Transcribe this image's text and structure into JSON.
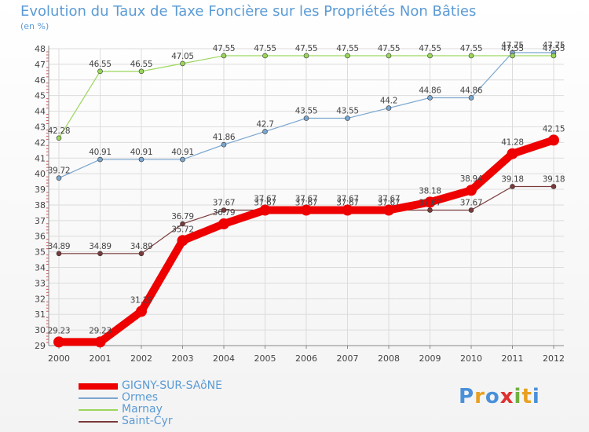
{
  "title": "Evolution du Taux de Taxe Foncière sur les Propriétés Non Bâties",
  "subtitle": "(en %)",
  "brand": [
    "P",
    "r",
    "o",
    "x",
    "i",
    "t",
    "i"
  ],
  "brand_colors": [
    "#4a90d9",
    "#e8a020",
    "#4a90d9",
    "#e03030",
    "#70b040",
    "#e8a020",
    "#4a90d9"
  ],
  "chart_data": {
    "type": "line",
    "title": "Evolution du Taux de Taxe Foncière sur les Propriétés Non Bâties",
    "ylabel": "(en %)",
    "xlabel": "",
    "ylim": [
      29,
      48
    ],
    "yticks": [
      29,
      30,
      31,
      32,
      33,
      34,
      35,
      36,
      37,
      38,
      39,
      40,
      41,
      42,
      43,
      44,
      45,
      46,
      47,
      48
    ],
    "categories": [
      "2000",
      "2001",
      "2002",
      "2003",
      "2004",
      "2005",
      "2006",
      "2007",
      "2008",
      "2009",
      "2010",
      "2011",
      "2012"
    ],
    "series": [
      {
        "name": "GIGNY-SUR-SAôNE",
        "color": "#ee0000",
        "width": 10,
        "marker": 7,
        "values": [
          29.23,
          29.23,
          31.19,
          35.72,
          36.79,
          37.67,
          37.67,
          37.67,
          37.67,
          38.18,
          38.94,
          41.28,
          42.15
        ],
        "labels": [
          "29.23",
          "29.23",
          "31.19",
          "35.72",
          "36.79",
          "37.67",
          "37.67",
          "37.67",
          "37.67",
          "38.18",
          "38.94",
          "41.28",
          "42.15"
        ]
      },
      {
        "name": "Ormes",
        "color": "#7aa6cf",
        "width": 1.2,
        "marker": 3,
        "values": [
          39.72,
          40.91,
          40.91,
          40.91,
          41.86,
          42.7,
          43.55,
          43.55,
          44.2,
          44.86,
          44.86,
          47.75,
          47.75
        ],
        "labels": [
          "39.72",
          "40.91",
          "40.91",
          "40.91",
          "41.86",
          "42.7",
          "43.55",
          "43.55",
          "44.2",
          "44.86",
          "44.86",
          "47.75",
          "47.75"
        ]
      },
      {
        "name": "Marnay",
        "color": "#9ad65a",
        "width": 1.2,
        "marker": 3,
        "values": [
          42.28,
          46.55,
          46.55,
          47.05,
          47.55,
          47.55,
          47.55,
          47.55,
          47.55,
          47.55,
          47.55,
          47.55,
          47.55
        ],
        "labels": [
          "42.28",
          "46.55",
          "46.55",
          "47.05",
          "47.55",
          "47.55",
          "47.55",
          "47.55",
          "47.55",
          "47.55",
          "47.55",
          "47.55",
          "47.55"
        ]
      },
      {
        "name": "Saint-Cyr",
        "color": "#7a3a3a",
        "width": 1.2,
        "marker": 3,
        "values": [
          34.89,
          34.89,
          34.89,
          36.79,
          37.67,
          37.67,
          37.67,
          37.67,
          37.67,
          37.67,
          37.67,
          39.18,
          39.18
        ],
        "labels": [
          "34.89",
          "34.89",
          "34.89",
          "36.79",
          "37.67",
          "37.67",
          "37.67",
          "37.67",
          "37.67",
          "37.67",
          "37.67",
          "39.18",
          "39.18"
        ]
      }
    ]
  }
}
